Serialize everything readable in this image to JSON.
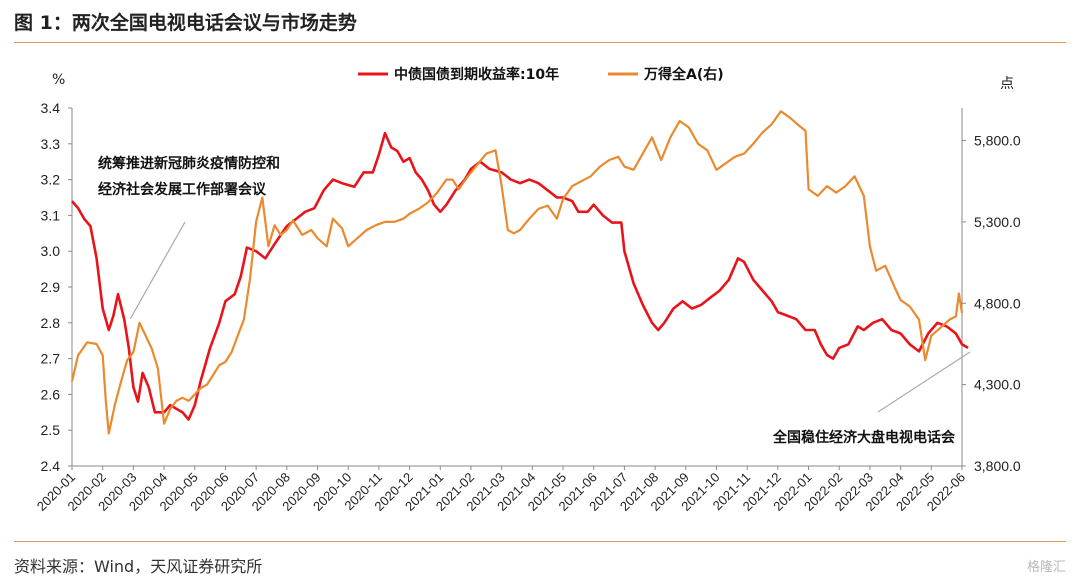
{
  "header": {
    "title": "图 1：两次全国电视电话会议与市场走势"
  },
  "footer": {
    "source": "资料来源：Wind，天风证券研究所",
    "watermark": "格隆汇"
  },
  "chart_data": {
    "type": "line",
    "x": [
      "2020-01",
      "2020-02",
      "2020-03",
      "2020-04",
      "2020-05",
      "2020-06",
      "2020-07",
      "2020-08",
      "2020-09",
      "2020-10",
      "2020-11",
      "2020-12",
      "2021-01",
      "2021-02",
      "2021-03",
      "2021-04",
      "2021-05",
      "2021-06",
      "2021-07",
      "2021-08",
      "2021-09",
      "2021-10",
      "2021-11",
      "2021-12",
      "2022-01",
      "2022-02",
      "2022-03",
      "2022-04",
      "2022-05",
      "2022-06"
    ],
    "y_left_label": "%",
    "y_right_label": "点",
    "ylim_left": [
      2.4,
      3.4
    ],
    "ylim_right": [
      3800,
      6000
    ],
    "left_ticks": [
      "2.4",
      "2.5",
      "2.6",
      "2.7",
      "2.8",
      "2.9",
      "3.0",
      "3.1",
      "3.2",
      "3.3",
      "3.4"
    ],
    "right_ticks": [
      "3,800.0",
      "4,300.0",
      "4,800.0",
      "5,300.0",
      "5,800.0"
    ],
    "grid": false,
    "legend_position": "top-center",
    "series": [
      {
        "name": "中债国债到期收益率:10年",
        "axis": "left",
        "color": "#e8141c",
        "points": [
          [
            0,
            3.14
          ],
          [
            0.2,
            3.12
          ],
          [
            0.4,
            3.09
          ],
          [
            0.6,
            3.07
          ],
          [
            0.8,
            2.98
          ],
          [
            1.0,
            2.84
          ],
          [
            1.2,
            2.78
          ],
          [
            1.35,
            2.82
          ],
          [
            1.5,
            2.88
          ],
          [
            1.7,
            2.81
          ],
          [
            1.85,
            2.73
          ],
          [
            2.0,
            2.62
          ],
          [
            2.15,
            2.58
          ],
          [
            2.3,
            2.66
          ],
          [
            2.5,
            2.62
          ],
          [
            2.7,
            2.55
          ],
          [
            3.0,
            2.55
          ],
          [
            3.2,
            2.57
          ],
          [
            3.4,
            2.56
          ],
          [
            3.6,
            2.55
          ],
          [
            3.8,
            2.53
          ],
          [
            4.0,
            2.57
          ],
          [
            4.2,
            2.64
          ],
          [
            4.5,
            2.73
          ],
          [
            4.8,
            2.8
          ],
          [
            5.0,
            2.86
          ],
          [
            5.3,
            2.88
          ],
          [
            5.5,
            2.93
          ],
          [
            5.7,
            3.01
          ],
          [
            6.0,
            3.0
          ],
          [
            6.3,
            2.98
          ],
          [
            6.6,
            3.02
          ],
          [
            7.0,
            3.07
          ],
          [
            7.3,
            3.09
          ],
          [
            7.6,
            3.11
          ],
          [
            7.9,
            3.12
          ],
          [
            8.2,
            3.17
          ],
          [
            8.5,
            3.2
          ],
          [
            8.8,
            3.19
          ],
          [
            9.2,
            3.18
          ],
          [
            9.5,
            3.22
          ],
          [
            9.8,
            3.22
          ],
          [
            10.0,
            3.27
          ],
          [
            10.2,
            3.33
          ],
          [
            10.4,
            3.29
          ],
          [
            10.6,
            3.28
          ],
          [
            10.8,
            3.25
          ],
          [
            11.0,
            3.26
          ],
          [
            11.2,
            3.22
          ],
          [
            11.4,
            3.2
          ],
          [
            11.6,
            3.17
          ],
          [
            11.8,
            3.13
          ],
          [
            12.0,
            3.11
          ],
          [
            12.2,
            3.13
          ],
          [
            12.5,
            3.17
          ],
          [
            12.8,
            3.2
          ],
          [
            13.0,
            3.23
          ],
          [
            13.3,
            3.25
          ],
          [
            13.6,
            3.23
          ],
          [
            14.0,
            3.22
          ],
          [
            14.3,
            3.2
          ],
          [
            14.6,
            3.19
          ],
          [
            14.9,
            3.2
          ],
          [
            15.2,
            3.19
          ],
          [
            15.5,
            3.17
          ],
          [
            15.8,
            3.15
          ],
          [
            16.0,
            3.15
          ],
          [
            16.3,
            3.14
          ],
          [
            16.5,
            3.11
          ],
          [
            16.8,
            3.11
          ],
          [
            17.0,
            3.13
          ],
          [
            17.3,
            3.1
          ],
          [
            17.6,
            3.08
          ],
          [
            17.9,
            3.08
          ],
          [
            18.0,
            3.0
          ],
          [
            18.3,
            2.91
          ],
          [
            18.6,
            2.85
          ],
          [
            18.9,
            2.8
          ],
          [
            19.1,
            2.78
          ],
          [
            19.3,
            2.8
          ],
          [
            19.6,
            2.84
          ],
          [
            19.9,
            2.86
          ],
          [
            20.2,
            2.84
          ],
          [
            20.5,
            2.85
          ],
          [
            20.8,
            2.87
          ],
          [
            21.1,
            2.89
          ],
          [
            21.4,
            2.92
          ],
          [
            21.7,
            2.98
          ],
          [
            21.9,
            2.97
          ],
          [
            22.2,
            2.92
          ],
          [
            22.5,
            2.89
          ],
          [
            22.8,
            2.86
          ],
          [
            23.0,
            2.83
          ],
          [
            23.3,
            2.82
          ],
          [
            23.6,
            2.81
          ],
          [
            23.9,
            2.78
          ],
          [
            24.2,
            2.78
          ],
          [
            24.4,
            2.74
          ],
          [
            24.6,
            2.71
          ],
          [
            24.8,
            2.7
          ],
          [
            25.0,
            2.73
          ],
          [
            25.3,
            2.74
          ],
          [
            25.6,
            2.79
          ],
          [
            25.8,
            2.78
          ],
          [
            26.1,
            2.8
          ],
          [
            26.4,
            2.81
          ],
          [
            26.7,
            2.78
          ],
          [
            27.0,
            2.77
          ],
          [
            27.3,
            2.74
          ],
          [
            27.6,
            2.72
          ],
          [
            27.9,
            2.77
          ],
          [
            28.2,
            2.8
          ],
          [
            28.5,
            2.79
          ],
          [
            28.8,
            2.77
          ],
          [
            29.0,
            2.74
          ],
          [
            29.2,
            2.73
          ]
        ]
      },
      {
        "name": "万得全A(右)",
        "axis": "right",
        "color": "#ea8a2e",
        "points": [
          [
            0,
            4320
          ],
          [
            0.2,
            4480
          ],
          [
            0.5,
            4560
          ],
          [
            0.8,
            4550
          ],
          [
            1.0,
            4480
          ],
          [
            1.1,
            4200
          ],
          [
            1.2,
            4000
          ],
          [
            1.4,
            4180
          ],
          [
            1.6,
            4320
          ],
          [
            1.8,
            4450
          ],
          [
            2.0,
            4500
          ],
          [
            2.2,
            4680
          ],
          [
            2.4,
            4600
          ],
          [
            2.6,
            4520
          ],
          [
            2.8,
            4400
          ],
          [
            3.0,
            4060
          ],
          [
            3.2,
            4150
          ],
          [
            3.4,
            4200
          ],
          [
            3.6,
            4220
          ],
          [
            3.8,
            4200
          ],
          [
            4.0,
            4240
          ],
          [
            4.2,
            4280
          ],
          [
            4.4,
            4300
          ],
          [
            4.6,
            4360
          ],
          [
            4.8,
            4420
          ],
          [
            5.0,
            4440
          ],
          [
            5.2,
            4500
          ],
          [
            5.4,
            4600
          ],
          [
            5.6,
            4700
          ],
          [
            5.8,
            4950
          ],
          [
            6.0,
            5300
          ],
          [
            6.2,
            5450
          ],
          [
            6.4,
            5150
          ],
          [
            6.6,
            5280
          ],
          [
            6.8,
            5220
          ],
          [
            7.0,
            5250
          ],
          [
            7.2,
            5310
          ],
          [
            7.5,
            5220
          ],
          [
            7.8,
            5250
          ],
          [
            8.0,
            5200
          ],
          [
            8.3,
            5150
          ],
          [
            8.5,
            5320
          ],
          [
            8.8,
            5260
          ],
          [
            9.0,
            5150
          ],
          [
            9.3,
            5200
          ],
          [
            9.6,
            5250
          ],
          [
            9.9,
            5280
          ],
          [
            10.2,
            5300
          ],
          [
            10.5,
            5300
          ],
          [
            10.8,
            5320
          ],
          [
            11.0,
            5350
          ],
          [
            11.3,
            5380
          ],
          [
            11.6,
            5420
          ],
          [
            11.9,
            5480
          ],
          [
            12.2,
            5560
          ],
          [
            12.4,
            5560
          ],
          [
            12.6,
            5500
          ],
          [
            12.9,
            5580
          ],
          [
            13.2,
            5650
          ],
          [
            13.5,
            5720
          ],
          [
            13.8,
            5740
          ],
          [
            14.0,
            5520
          ],
          [
            14.2,
            5250
          ],
          [
            14.4,
            5230
          ],
          [
            14.6,
            5250
          ],
          [
            14.9,
            5320
          ],
          [
            15.2,
            5380
          ],
          [
            15.5,
            5400
          ],
          [
            15.8,
            5320
          ],
          [
            16.0,
            5440
          ],
          [
            16.3,
            5520
          ],
          [
            16.6,
            5550
          ],
          [
            16.9,
            5580
          ],
          [
            17.2,
            5640
          ],
          [
            17.5,
            5680
          ],
          [
            17.8,
            5700
          ],
          [
            18.0,
            5640
          ],
          [
            18.3,
            5620
          ],
          [
            18.6,
            5720
          ],
          [
            18.9,
            5820
          ],
          [
            19.2,
            5680
          ],
          [
            19.5,
            5820
          ],
          [
            19.8,
            5920
          ],
          [
            20.1,
            5880
          ],
          [
            20.4,
            5780
          ],
          [
            20.7,
            5740
          ],
          [
            21.0,
            5620
          ],
          [
            21.3,
            5660
          ],
          [
            21.6,
            5700
          ],
          [
            21.9,
            5720
          ],
          [
            22.2,
            5780
          ],
          [
            22.5,
            5850
          ],
          [
            22.8,
            5900
          ],
          [
            23.1,
            5980
          ],
          [
            23.4,
            5940
          ],
          [
            23.7,
            5890
          ],
          [
            23.9,
            5860
          ],
          [
            24.0,
            5500
          ],
          [
            24.3,
            5460
          ],
          [
            24.6,
            5520
          ],
          [
            24.9,
            5480
          ],
          [
            25.2,
            5520
          ],
          [
            25.5,
            5580
          ],
          [
            25.8,
            5460
          ],
          [
            26.0,
            5150
          ],
          [
            26.2,
            5000
          ],
          [
            26.5,
            5030
          ],
          [
            26.8,
            4900
          ],
          [
            27.0,
            4820
          ],
          [
            27.3,
            4780
          ],
          [
            27.6,
            4700
          ],
          [
            27.8,
            4450
          ],
          [
            28.0,
            4600
          ],
          [
            28.3,
            4650
          ],
          [
            28.6,
            4700
          ],
          [
            28.8,
            4720
          ],
          [
            28.9,
            4860
          ],
          [
            29.0,
            4740
          ]
        ]
      }
    ],
    "annotations": [
      {
        "text_lines": [
          "统筹推进新冠肺炎疫情防控和",
          "经济社会发展工作部署会议"
        ],
        "target_x": 1.9,
        "target_y": 2.8
      },
      {
        "text_lines": [
          "全国稳住经济大盘电视电话会"
        ],
        "target_x": 29.2,
        "target_y": 2.73
      }
    ]
  }
}
